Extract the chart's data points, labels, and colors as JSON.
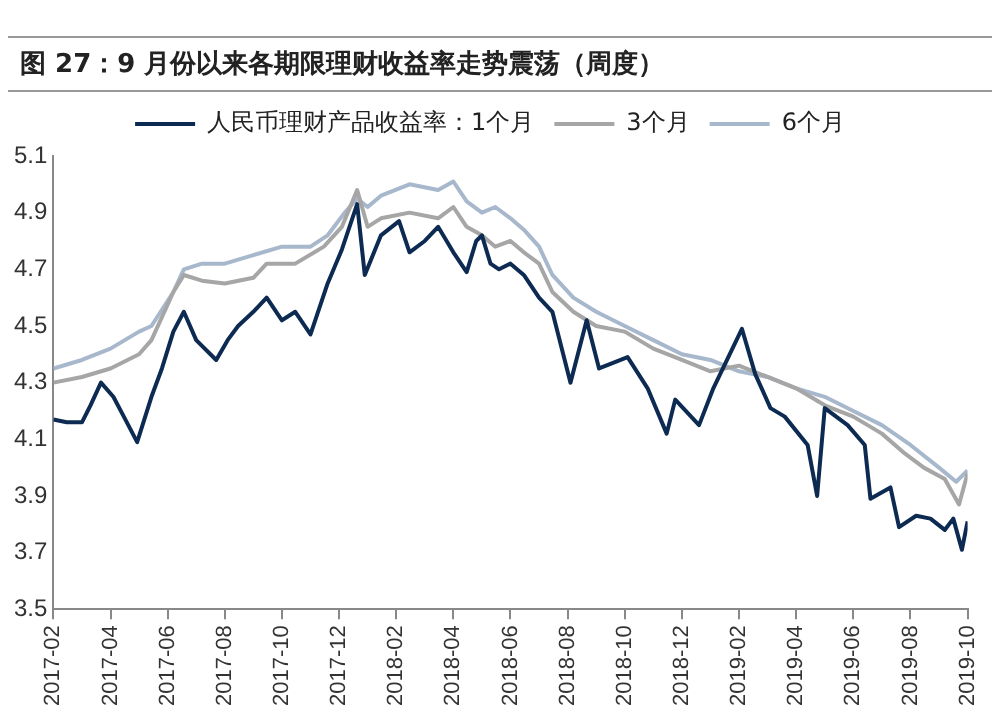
{
  "chart_data": {
    "type": "line",
    "title": "图 27：9 月份以来各期限理财收益率走势震荡（周度）",
    "xlim": [
      "2017-02",
      "2019-10"
    ],
    "xticks": [
      "2017-02",
      "2017-04",
      "2017-06",
      "2017-08",
      "2017-10",
      "2017-12",
      "2018-02",
      "2018-04",
      "2018-06",
      "2018-08",
      "2018-10",
      "2018-12",
      "2019-02",
      "2019-04",
      "2019-06",
      "2019-08",
      "2019-10"
    ],
    "ylim": [
      3.5,
      5.1
    ],
    "yticks": [
      3.5,
      3.7,
      3.9,
      4.1,
      4.3,
      4.5,
      4.7,
      4.9,
      5.1
    ],
    "grid": false,
    "legend": "top",
    "series": [
      {
        "name": "人民币理财产品收益率：1个月",
        "color": "#0d2b52",
        "x": [
          "2017-02-01",
          "2017-02-15",
          "2017-03-01",
          "2017-03-10",
          "2017-03-21",
          "2017-04-04",
          "2017-04-15",
          "2017-04-29",
          "2017-05-14",
          "2017-05-25",
          "2017-06-07",
          "2017-06-18",
          "2017-07-01",
          "2017-07-22",
          "2017-08-04",
          "2017-08-15",
          "2017-09-01",
          "2017-09-15",
          "2017-10-01",
          "2017-10-15",
          "2017-10-31",
          "2017-11-19",
          "2017-12-04",
          "2017-12-20",
          "2017-12-28",
          "2018-01-15",
          "2018-02-04",
          "2018-02-15",
          "2018-03-01",
          "2018-03-15",
          "2018-04-01",
          "2018-04-15",
          "2018-04-25",
          "2018-05-01",
          "2018-05-10",
          "2018-05-19",
          "2018-06-01",
          "2018-06-15",
          "2018-07-01",
          "2018-07-15",
          "2018-08-04",
          "2018-08-21",
          "2018-09-04",
          "2018-10-04",
          "2018-10-25",
          "2018-11-15",
          "2018-11-24",
          "2018-12-19",
          "2019-01-04",
          "2019-02-04",
          "2019-02-18",
          "2019-03-04",
          "2019-03-19",
          "2019-04-13",
          "2019-04-23",
          "2019-05-01",
          "2019-05-25",
          "2019-06-13",
          "2019-06-19",
          "2019-07-10",
          "2019-07-19",
          "2019-08-07",
          "2019-08-22",
          "2019-09-07",
          "2019-09-16",
          "2019-09-25",
          "2019-10-01"
        ],
        "values": [
          4.17,
          4.16,
          4.16,
          4.22,
          4.3,
          4.25,
          4.18,
          4.09,
          4.25,
          4.35,
          4.48,
          4.55,
          4.45,
          4.38,
          4.45,
          4.5,
          4.55,
          4.6,
          4.52,
          4.55,
          4.47,
          4.65,
          4.77,
          4.93,
          4.68,
          4.82,
          4.87,
          4.76,
          4.8,
          4.85,
          4.76,
          4.69,
          4.8,
          4.82,
          4.72,
          4.7,
          4.72,
          4.68,
          4.6,
          4.55,
          4.3,
          4.52,
          4.35,
          4.39,
          4.28,
          4.12,
          4.24,
          4.15,
          4.28,
          4.49,
          4.33,
          4.21,
          4.18,
          4.08,
          3.9,
          4.21,
          4.15,
          4.08,
          3.89,
          3.93,
          3.79,
          3.83,
          3.82,
          3.78,
          3.82,
          3.71,
          3.81
        ]
      },
      {
        "name": "3个月",
        "color": "#a6a6a6",
        "x": [
          "2017-02-01",
          "2017-03-01",
          "2017-04-01",
          "2017-05-01",
          "2017-05-14",
          "2017-06-07",
          "2017-06-18",
          "2017-07-07",
          "2017-08-01",
          "2017-09-01",
          "2017-09-15",
          "2017-10-15",
          "2017-11-15",
          "2017-12-04",
          "2017-12-20",
          "2018-01-01",
          "2018-01-15",
          "2018-02-15",
          "2018-03-15",
          "2018-04-01",
          "2018-04-15",
          "2018-05-01",
          "2018-05-15",
          "2018-06-01",
          "2018-06-15",
          "2018-07-01",
          "2018-07-15",
          "2018-08-07",
          "2018-09-01",
          "2018-10-01",
          "2018-11-01",
          "2018-12-01",
          "2019-01-01",
          "2019-02-01",
          "2019-03-01",
          "2019-04-01",
          "2019-05-01",
          "2019-06-01",
          "2019-07-01",
          "2019-07-25",
          "2019-08-15",
          "2019-09-07",
          "2019-09-22",
          "2019-10-01"
        ],
        "values": [
          4.3,
          4.32,
          4.35,
          4.4,
          4.45,
          4.62,
          4.68,
          4.66,
          4.65,
          4.67,
          4.72,
          4.72,
          4.78,
          4.85,
          4.98,
          4.85,
          4.88,
          4.9,
          4.88,
          4.92,
          4.85,
          4.82,
          4.78,
          4.8,
          4.76,
          4.72,
          4.62,
          4.55,
          4.5,
          4.48,
          4.42,
          4.38,
          4.34,
          4.36,
          4.32,
          4.28,
          4.22,
          4.18,
          4.12,
          4.05,
          4.0,
          3.96,
          3.87,
          3.98
        ]
      },
      {
        "name": "6个月",
        "color": "#a8b8cc",
        "x": [
          "2017-02-01",
          "2017-03-01",
          "2017-04-01",
          "2017-05-01",
          "2017-05-14",
          "2017-06-07",
          "2017-06-18",
          "2017-07-07",
          "2017-08-01",
          "2017-09-01",
          "2017-10-01",
          "2017-11-01",
          "2017-11-19",
          "2017-12-07",
          "2017-12-20",
          "2018-01-01",
          "2018-01-15",
          "2018-02-15",
          "2018-03-15",
          "2018-04-01",
          "2018-04-15",
          "2018-05-01",
          "2018-05-15",
          "2018-06-01",
          "2018-06-15",
          "2018-07-01",
          "2018-07-15",
          "2018-08-07",
          "2018-09-01",
          "2018-10-01",
          "2018-11-01",
          "2018-12-01",
          "2019-01-01",
          "2019-02-01",
          "2019-03-01",
          "2019-04-01",
          "2019-05-01",
          "2019-06-01",
          "2019-07-01",
          "2019-08-01",
          "2019-09-01",
          "2019-09-19",
          "2019-10-01"
        ],
        "values": [
          4.35,
          4.38,
          4.42,
          4.48,
          4.5,
          4.62,
          4.7,
          4.72,
          4.72,
          4.75,
          4.78,
          4.78,
          4.82,
          4.9,
          4.95,
          4.92,
          4.96,
          5.0,
          4.98,
          5.01,
          4.94,
          4.9,
          4.92,
          4.88,
          4.84,
          4.78,
          4.68,
          4.6,
          4.55,
          4.5,
          4.45,
          4.4,
          4.38,
          4.34,
          4.32,
          4.28,
          4.25,
          4.2,
          4.15,
          4.08,
          4.0,
          3.95,
          3.99
        ]
      }
    ]
  }
}
